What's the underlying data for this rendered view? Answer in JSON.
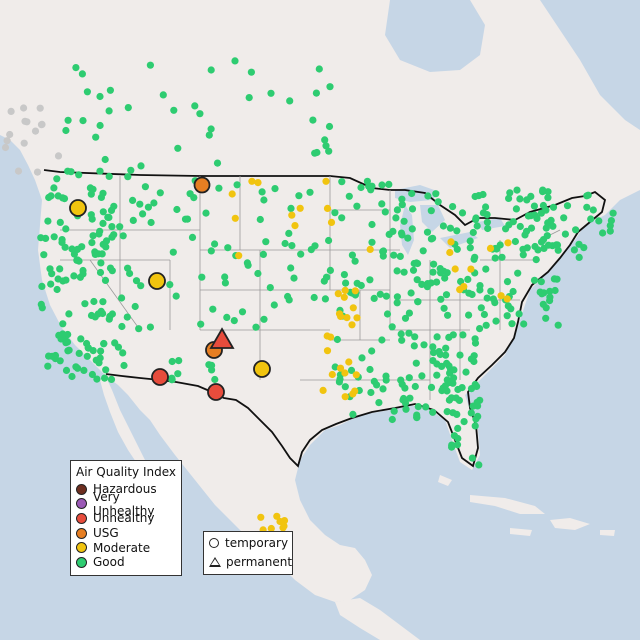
{
  "map": {
    "colors": {
      "water": "#c6d6e6",
      "land": "#f0ecea",
      "land_light": "#f6f3f1",
      "border_national": "#111111",
      "border_state": "#9a9a9a",
      "good": "#2ecc71",
      "moderate": "#f1c40f",
      "usg": "#e67e22",
      "unhealthy": "#e74c3c",
      "very_unhealthy": "#9b59b6",
      "hazardous": "#6d2e1f",
      "no_data": "#c8c8c8"
    },
    "aqi_legend": {
      "title": "Air Quality Index",
      "items": [
        {
          "label": "Hazardous",
          "color": "#6d2e1f"
        },
        {
          "label": "Very Unhealthy",
          "color": "#9b59b6"
        },
        {
          "label": "Unhealthy",
          "color": "#e74c3c"
        },
        {
          "label": "USG",
          "color": "#e67e22"
        },
        {
          "label": "Moderate",
          "color": "#f1c40f"
        },
        {
          "label": "Good",
          "color": "#2ecc71"
        }
      ]
    },
    "type_legend": {
      "items": [
        {
          "label": "temporary",
          "shape": "circle"
        },
        {
          "label": "permanent",
          "shape": "triangle"
        }
      ]
    },
    "highlighted_monitors": [
      {
        "name": "monitor-pacific-northwest",
        "level": "moderate",
        "shape": "circle"
      },
      {
        "name": "monitor-montana",
        "level": "usg",
        "shape": "circle"
      },
      {
        "name": "monitor-utah",
        "level": "moderate",
        "shape": "circle"
      },
      {
        "name": "monitor-new-mexico-north",
        "level": "usg",
        "shape": "circle"
      },
      {
        "name": "monitor-new-mexico-north-permanent",
        "level": "unhealthy",
        "shape": "triangle"
      },
      {
        "name": "monitor-texas-panhandle",
        "level": "moderate",
        "shape": "circle"
      },
      {
        "name": "monitor-arizona",
        "level": "unhealthy",
        "shape": "circle"
      },
      {
        "name": "monitor-new-mexico-south",
        "level": "unhealthy",
        "shape": "circle"
      }
    ]
  }
}
